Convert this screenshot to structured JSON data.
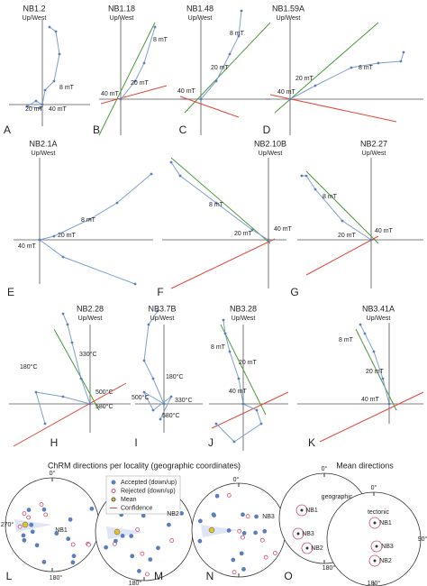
{
  "zijderveld": [
    {
      "letter": "A",
      "title": "NB1.2",
      "axis_label": "Up/West",
      "labels": [
        "8 mT",
        "20 mT",
        "40 mT"
      ]
    },
    {
      "letter": "B",
      "title": "NB1.18",
      "axis_label": "Up/West",
      "labels": [
        "8 mT",
        "20 mT",
        "40 mT"
      ]
    },
    {
      "letter": "C",
      "title": "NB1.48",
      "axis_label": "Up/West",
      "labels": [
        "8 mT",
        "20 mT",
        "40 mT"
      ]
    },
    {
      "letter": "D",
      "title": "NB1.59A",
      "axis_label": "Up/West",
      "labels": [
        "8 mT",
        "20 mT",
        "40 mT"
      ]
    },
    {
      "letter": "E",
      "title": "NB2.1A",
      "axis_label": "Up/West",
      "labels": [
        "8 mT",
        "20 mT",
        "40 mT"
      ]
    },
    {
      "letter": "F",
      "title": "NB2.10B",
      "axis_label": "Up/West",
      "labels": [
        "8 mT",
        "20 mT",
        "40 mT"
      ]
    },
    {
      "letter": "G",
      "title": "NB2.27",
      "axis_label": "Up/West",
      "labels": [
        "8 mT",
        "20 mT",
        "40 mT"
      ]
    },
    {
      "letter": "H",
      "title": "NB2.28",
      "axis_label": "Up/West",
      "labels": [
        "330°C",
        "180°C",
        "500°C",
        "580°C"
      ]
    },
    {
      "letter": "I",
      "title": "NB3.7B",
      "axis_label": "Up/West",
      "labels": [
        "180°C",
        "500°C",
        "330°C",
        "580°C"
      ]
    },
    {
      "letter": "J",
      "title": "NB3.28",
      "axis_label": "Up/West",
      "labels": [
        "8 mT",
        "20 mT",
        "40 mT"
      ]
    },
    {
      "letter": "K",
      "title": "NB3.41A",
      "axis_label": "Up/West",
      "labels": [
        "8 mT",
        "20 mT",
        "40 mT"
      ]
    }
  ],
  "stereonets": {
    "title": "ChRM directions per locality (geographic coordinates)",
    "legend": [
      "Accepted (down/up)",
      "Rejected (down/up)",
      "Mean",
      "Confidence"
    ],
    "mean_title": "Mean directions",
    "panels": [
      {
        "letter": "L",
        "labels": [
          "0°",
          "270°",
          "180°",
          "NB1"
        ]
      },
      {
        "letter": "M",
        "labels": [
          "NB2",
          "180°"
        ]
      },
      {
        "letter": "N",
        "labels": [
          "0°",
          "NB3"
        ]
      },
      {
        "letter": "O",
        "labels": [
          "0°",
          "geographic",
          "NB1",
          "NB3",
          "NB2",
          "180°",
          "0°",
          "tectonic",
          "NB1",
          "NB3",
          "NB2",
          "90°",
          "180°"
        ]
      }
    ]
  }
}
